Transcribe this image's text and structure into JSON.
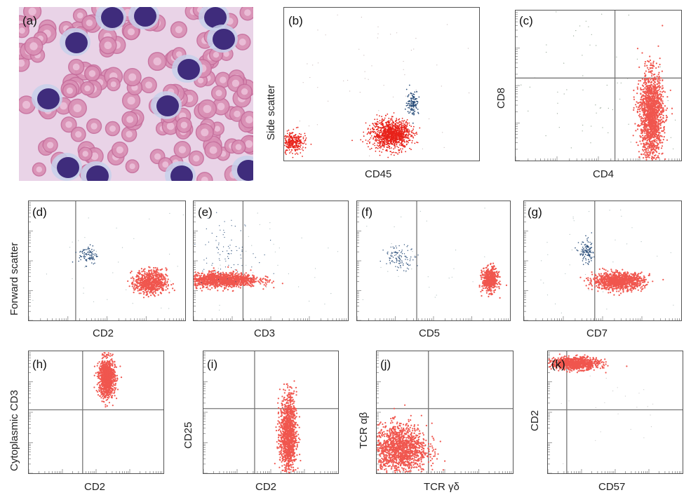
{
  "figure": {
    "panels": [
      {
        "id": "a",
        "label": "(a)",
        "kind": "image",
        "description_icon": "blood-smear-micrograph"
      },
      {
        "id": "b",
        "label": "(b)",
        "xlabel": "CD45",
        "ylabel": "Side scatter"
      },
      {
        "id": "c",
        "label": "(c)",
        "xlabel": "CD4",
        "ylabel": "CD8"
      },
      {
        "id": "d",
        "label": "(d)",
        "xlabel": "CD2",
        "ylabel": "Forward scatter"
      },
      {
        "id": "e",
        "label": "(e)",
        "xlabel": "CD3",
        "ylabel": ""
      },
      {
        "id": "f",
        "label": "(f)",
        "xlabel": "CD5",
        "ylabel": ""
      },
      {
        "id": "g",
        "label": "(g)",
        "xlabel": "CD7",
        "ylabel": ""
      },
      {
        "id": "h",
        "label": "(h)",
        "xlabel": "CD2",
        "ylabel": "Cytoplasmic CD3"
      },
      {
        "id": "i",
        "label": "(i)",
        "xlabel": "CD2",
        "ylabel": "CD25"
      },
      {
        "id": "j",
        "label": "(j)",
        "xlabel": "TCR γδ",
        "ylabel": "TCR αβ"
      },
      {
        "id": "k",
        "label": "(k)",
        "xlabel": "CD57",
        "ylabel": "CD2"
      }
    ]
  },
  "colors": {
    "population": "#f0564e",
    "population_core": "#e8221a",
    "other": "#2a4e7a",
    "gate": "#777777",
    "frame": "#555555"
  },
  "chart_data": [
    {
      "panel": "b",
      "type": "scatter",
      "xlabel": "CD45",
      "ylabel": "Side scatter",
      "grid": false,
      "series": [
        {
          "name": "",
          "color": "#e8221a",
          "x": [
            0.04,
            0.55
          ],
          "y": [
            0.12,
            0.17
          ]
        },
        {
          "name": "",
          "color": "#2a4e7a",
          "x": [
            0.65
          ],
          "y": [
            0.38
          ]
        }
      ]
    },
    {
      "panel": "c",
      "type": "scatter",
      "xlabel": "CD4",
      "ylabel": "CD8",
      "grid": false,
      "quadrant_lines": {
        "x": 0.6,
        "y": 0.55
      },
      "series": [
        {
          "name": "",
          "color": "#f0564e",
          "x": [
            0.82
          ],
          "y": [
            0.3
          ]
        }
      ]
    },
    {
      "panel": "d",
      "type": "scatter",
      "xlabel": "CD2",
      "ylabel": "Forward scatter",
      "grid": false,
      "series": [
        {
          "name": "",
          "color": "#f0564e",
          "x": [
            0.8
          ],
          "y": [
            0.32
          ]
        },
        {
          "name": "",
          "color": "#2a4e7a",
          "x": [
            0.18
          ],
          "y": [
            0.55
          ]
        }
      ]
    },
    {
      "panel": "e",
      "type": "scatter",
      "xlabel": "CD3",
      "ylabel": "",
      "grid": false,
      "series": [
        {
          "name": "",
          "color": "#f0564e",
          "x": [
            0.2
          ],
          "y": [
            0.35
          ]
        }
      ]
    },
    {
      "panel": "f",
      "type": "scatter",
      "xlabel": "CD5",
      "ylabel": "",
      "grid": false,
      "series": [
        {
          "name": "",
          "color": "#f0564e",
          "x": [
            0.87
          ],
          "y": [
            0.35
          ]
        },
        {
          "name": "",
          "color": "#2a4e7a",
          "x": [
            0.28
          ],
          "y": [
            0.53
          ]
        }
      ]
    },
    {
      "panel": "g",
      "type": "scatter",
      "xlabel": "CD7",
      "ylabel": "",
      "grid": false,
      "series": [
        {
          "name": "",
          "color": "#f0564e",
          "x": [
            0.55
          ],
          "y": [
            0.33
          ]
        },
        {
          "name": "",
          "color": "#2a4e7a",
          "x": [
            0.33
          ],
          "y": [
            0.57
          ]
        }
      ]
    },
    {
      "panel": "h",
      "type": "scatter",
      "xlabel": "CD2",
      "ylabel": "Cytoplasmic CD3",
      "grid": false,
      "quadrant_lines": {
        "x": 0.4,
        "y": 0.52
      },
      "series": [
        {
          "name": "",
          "color": "#f0564e",
          "x": [
            0.54
          ],
          "y": [
            0.77
          ]
        }
      ]
    },
    {
      "panel": "i",
      "type": "scatter",
      "xlabel": "CD2",
      "ylabel": "CD25",
      "grid": false,
      "quadrant_lines": {
        "x": 0.42,
        "y": 0.53
      },
      "series": [
        {
          "name": "",
          "color": "#f0564e",
          "x": [
            0.6
          ],
          "y": [
            0.33
          ]
        }
      ]
    },
    {
      "panel": "j",
      "type": "scatter",
      "xlabel": "TCR γδ",
      "ylabel": "TCR αβ",
      "grid": false,
      "quadrant_lines": {
        "x": 0.38,
        "y": 0.53
      },
      "series": [
        {
          "name": "",
          "color": "#f0564e",
          "x": [
            0.18
          ],
          "y": [
            0.18
          ]
        }
      ]
    },
    {
      "panel": "k",
      "type": "scatter",
      "xlabel": "CD57",
      "ylabel": "CD2",
      "grid": false,
      "quadrant_lines": {
        "x": 0.14,
        "y": 0.52
      },
      "series": [
        {
          "name": "",
          "color": "#f0564e",
          "x": [
            0.17
          ],
          "y": [
            0.9
          ]
        }
      ]
    }
  ]
}
